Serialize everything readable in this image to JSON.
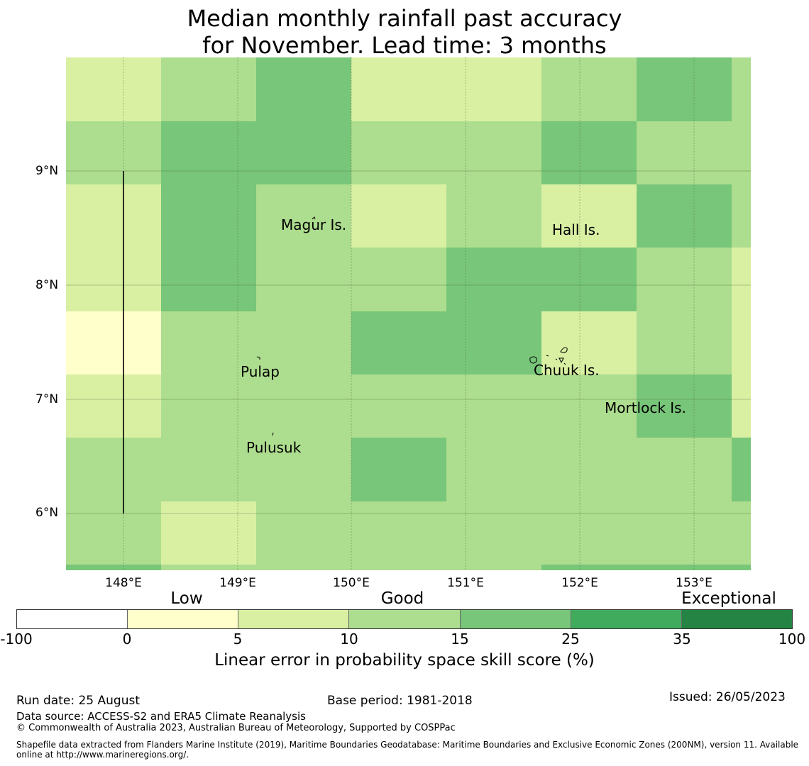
{
  "title_line1": "Median monthly rainfall past accuracy",
  "title_line2": "for November. Lead time: 3 months",
  "colors": {
    "cat_0_5": "#ffffcc",
    "cat_5_10": "#d9f0a3",
    "cat_10_15": "#addd8e",
    "cat_15_25": "#78c679",
    "cat_25_35": "#41ab5d",
    "cat_35_100": "#238443",
    "cat_neg": "#ffffff"
  },
  "lat_labels": [
    "9°N",
    "8°N",
    "7°N",
    "6°N"
  ],
  "lon_labels": [
    "148°E",
    "149°E",
    "150°E",
    "151°E",
    "152°E",
    "153°E"
  ],
  "places": {
    "magur": "Magur Is.",
    "hall": "Hall Is.",
    "pulap": "Pulap",
    "chuuk": "Chuuk Is.",
    "mortlock": "Mortlock Is.",
    "pulusuk": "Pulusuk"
  },
  "grid_skill_category": [
    [
      1,
      2,
      3,
      1,
      1,
      2,
      3,
      2
    ],
    [
      2,
      3,
      3,
      2,
      2,
      3,
      2,
      2
    ],
    [
      1,
      3,
      2,
      1,
      2,
      1,
      3,
      2
    ],
    [
      1,
      3,
      2,
      2,
      3,
      3,
      2,
      1
    ],
    [
      0,
      2,
      2,
      3,
      3,
      1,
      2,
      1
    ],
    [
      1,
      2,
      2,
      2,
      2,
      2,
      3,
      1
    ],
    [
      2,
      2,
      2,
      3,
      2,
      2,
      2,
      3
    ],
    [
      2,
      1,
      2,
      2,
      2,
      2,
      2,
      2
    ],
    [
      3,
      2,
      2,
      2,
      2,
      3,
      3,
      3
    ]
  ],
  "colorbar": {
    "categories": [
      "Low",
      "Good",
      "Exceptional"
    ],
    "ticks": [
      "-100",
      "0",
      "5",
      "10",
      "15",
      "25",
      "35",
      "100"
    ],
    "label": "Linear error in probability space skill score (%)"
  },
  "footer": {
    "run_date": "Run date: 25 August",
    "base_period": "Base period: 1981-2018",
    "issued": "Issued: 26/05/2023",
    "data_source": "Data source: ACCESS-S2 and ERA5 Climate Reanalysis",
    "copyright": "© Commonwealth of Australia 2023, Australian Bureau of Meteorology, Supported by COSPPac",
    "shapefile": "Shapefile data extracted from Flanders Marine Institute (2019), Maritime Boundaries Geodatabase: Maritime Boundaries and Exclusive Economic Zones (200NM), version 11. Available online at http://www.marineregions.org/."
  }
}
